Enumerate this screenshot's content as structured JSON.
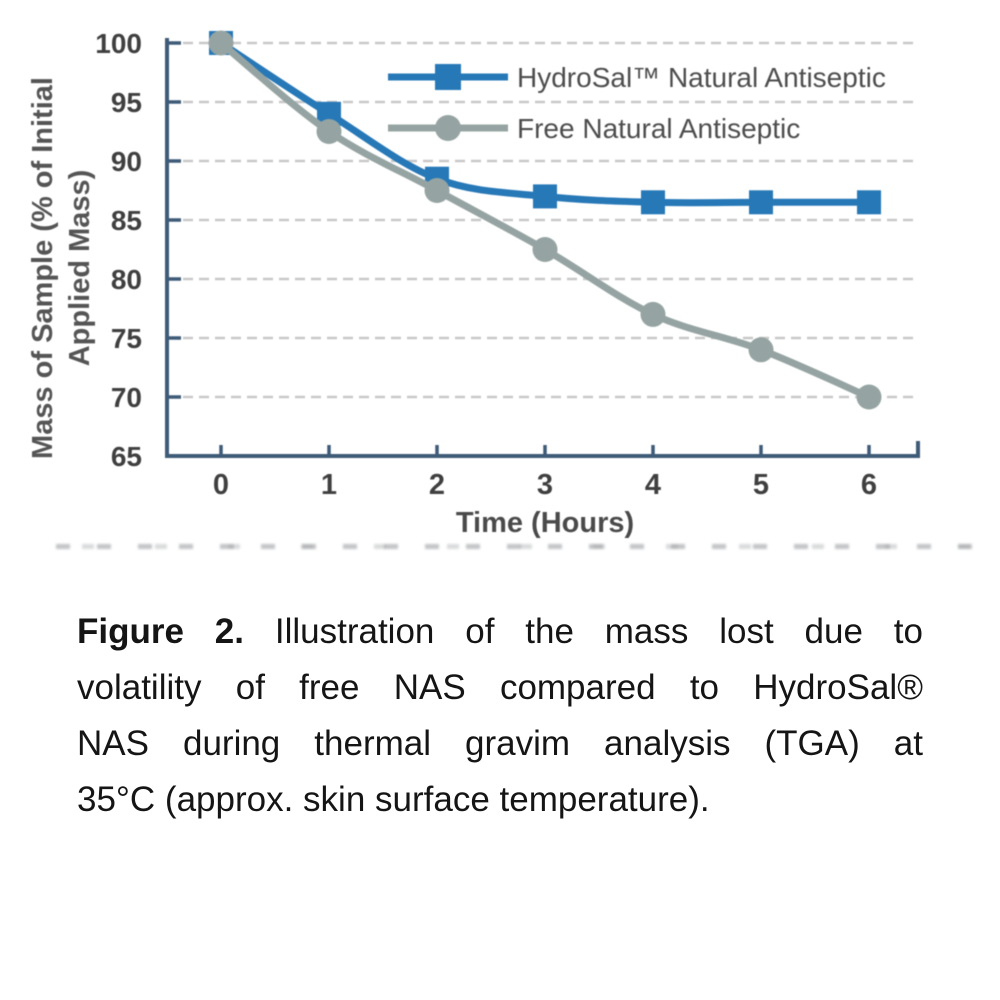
{
  "chart_data": {
    "type": "line",
    "x": [
      0,
      1,
      2,
      3,
      4,
      5,
      6
    ],
    "x_tick_labels": [
      "0",
      "1",
      "2",
      "3",
      "4",
      "5",
      "6"
    ],
    "y_ticks": [
      100,
      95,
      90,
      85,
      80,
      75,
      70,
      65
    ],
    "xlim": [
      0,
      6
    ],
    "ylim": [
      65,
      100
    ],
    "xlabel": "Time (Hours)",
    "ylabel": "Mass of Sample (% of Initial Applied Mass)",
    "ylabel_line1": "Mass of Sample (% of Initial",
    "ylabel_line2": "Applied Mass)",
    "grid": "horizontal-dashed",
    "legend_position": "top-right-inside",
    "series": [
      {
        "name": "HydroSal™ Natural Antiseptic",
        "values": [
          100,
          94,
          88.5,
          87,
          86.5,
          86.5,
          86.5
        ],
        "color": "#2778B7",
        "marker": "square"
      },
      {
        "name": "Free Natural Antiseptic",
        "values": [
          100,
          92.5,
          87.5,
          82.5,
          77,
          74,
          70
        ],
        "color": "#95A4A2",
        "marker": "circle"
      }
    ],
    "style": {
      "axis_color": "#3E5B77",
      "grid_color": "#C8C8C8",
      "tick_label_color": "#3F3F3F",
      "axis_title_color": "#4A4A4A",
      "ylabel_color": "#555555",
      "legend_text_color": "#4D4D4D"
    }
  },
  "caption": {
    "figure_label": "Figure 2.",
    "line1_rest": "Illustration of the mass lost due to",
    "line2": "volatility of free NAS compared to HydroSal®",
    "line3": "NAS during thermal gravim analysis (TGA) at",
    "line4": "35°C (approx. skin surface temperature)."
  }
}
